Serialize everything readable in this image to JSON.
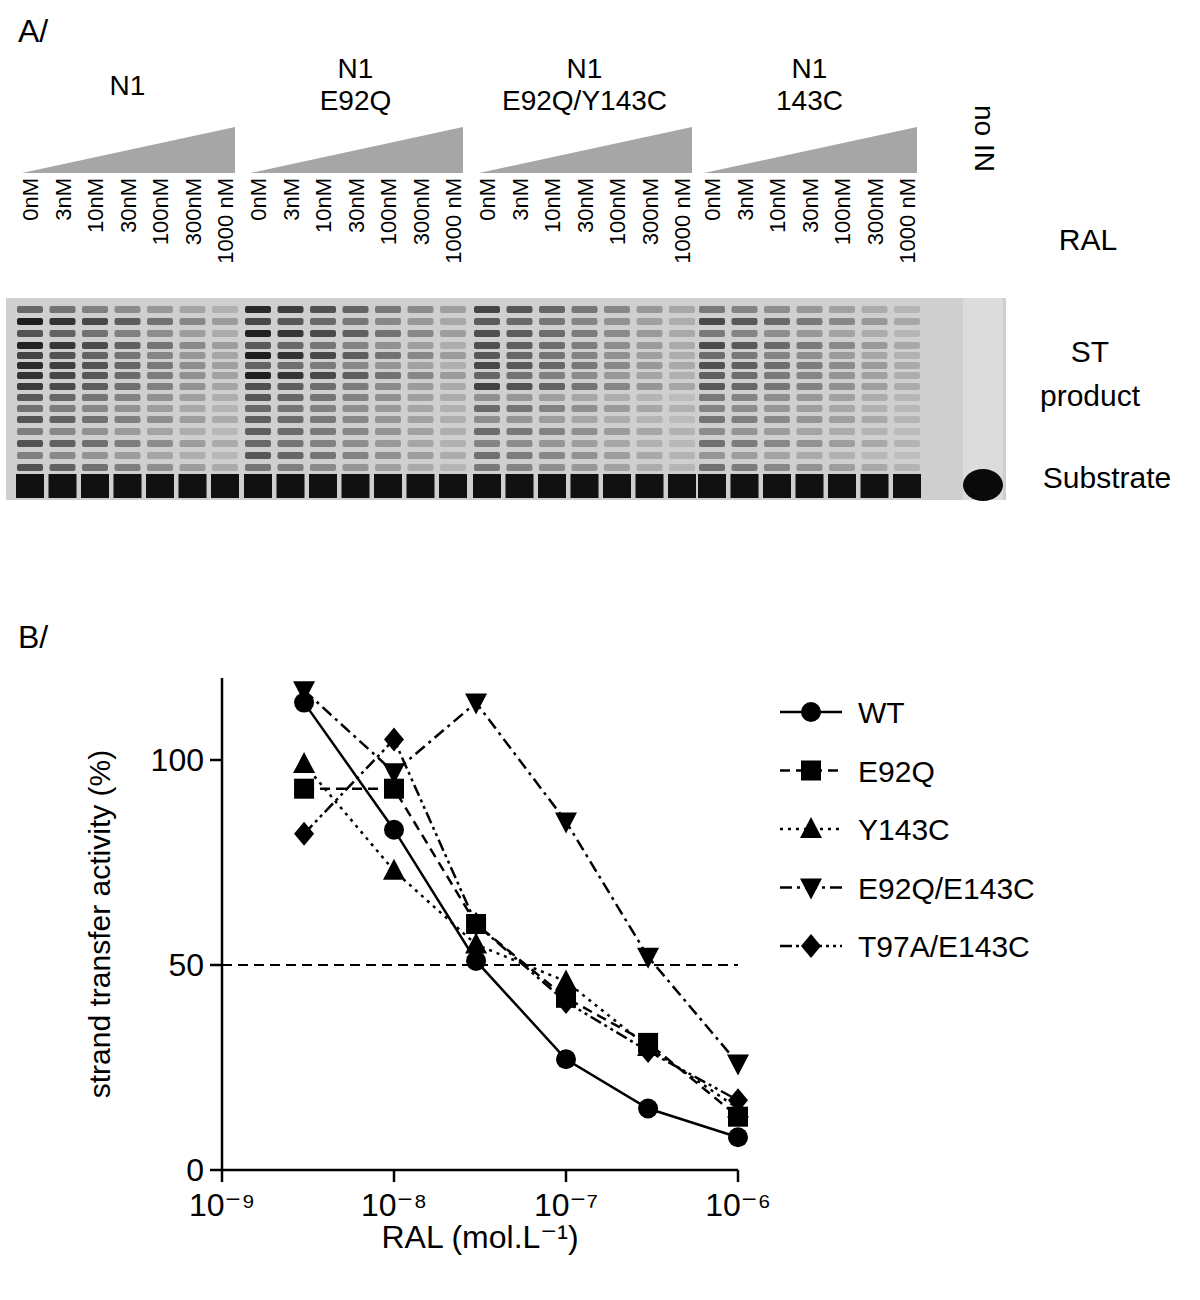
{
  "figure_labels": [
    "A/",
    "B/"
  ],
  "gel": {
    "groups": [
      {
        "label": [
          "N1"
        ]
      },
      {
        "label": [
          "N1",
          "E92Q"
        ]
      },
      {
        "label": [
          "N1",
          "E92Q/Y143C"
        ]
      },
      {
        "label": [
          "N1",
          "143C"
        ]
      }
    ],
    "concentrations": [
      "0nM",
      "3nM",
      "10nM",
      "30nM",
      "100nM",
      "300nM",
      "1000 nM"
    ],
    "control_lane": "no IN",
    "row_label": "RAL",
    "band_labels": [
      "ST",
      "product",
      "Substrate"
    ]
  },
  "chart_data": {
    "type": "line",
    "x_label": "RAL (mol.L⁻¹)",
    "y_label": "strand transfer activity (%)",
    "x": [
      3e-09,
      1e-08,
      3e-08,
      1e-07,
      3e-07,
      1e-06
    ],
    "series": [
      {
        "name": "WT",
        "color": "#000000",
        "marker": "circle",
        "line_style": "solid",
        "values": [
          114,
          83,
          51,
          27,
          15,
          8
        ]
      },
      {
        "name": "E92Q",
        "color": "#000000",
        "marker": "square",
        "line_style": "dashed",
        "values": [
          93,
          93,
          60,
          42,
          31,
          13
        ]
      },
      {
        "name": "Y143C",
        "color": "#000000",
        "marker": "triangle",
        "line_style": "dotted",
        "values": [
          99,
          73,
          55,
          46,
          30,
          15
        ]
      },
      {
        "name": "E92Q/E143C",
        "color": "#000000",
        "marker": "triangle-down",
        "line_style": "dashdot",
        "values": [
          117,
          97,
          114,
          85,
          52,
          26
        ]
      },
      {
        "name": "T97A/E143C",
        "color": "#000000",
        "marker": "diamond",
        "line_style": "dashdotdot",
        "values": [
          82,
          105,
          60,
          41,
          29,
          17
        ]
      }
    ],
    "threshold": 50,
    "log": "x",
    "xlim": [
      1e-09,
      1e-06
    ],
    "xticks": [
      {
        "value": 1e-09,
        "label": "10⁻⁹"
      },
      {
        "value": 1e-08,
        "label": "10⁻⁸"
      },
      {
        "value": 1e-07,
        "label": "10⁻⁷"
      },
      {
        "value": 1e-06,
        "label": "10⁻⁶"
      }
    ],
    "ylim": [
      0,
      120
    ],
    "yticks": [
      0,
      50,
      100
    ],
    "grid": false,
    "legend": "right"
  }
}
